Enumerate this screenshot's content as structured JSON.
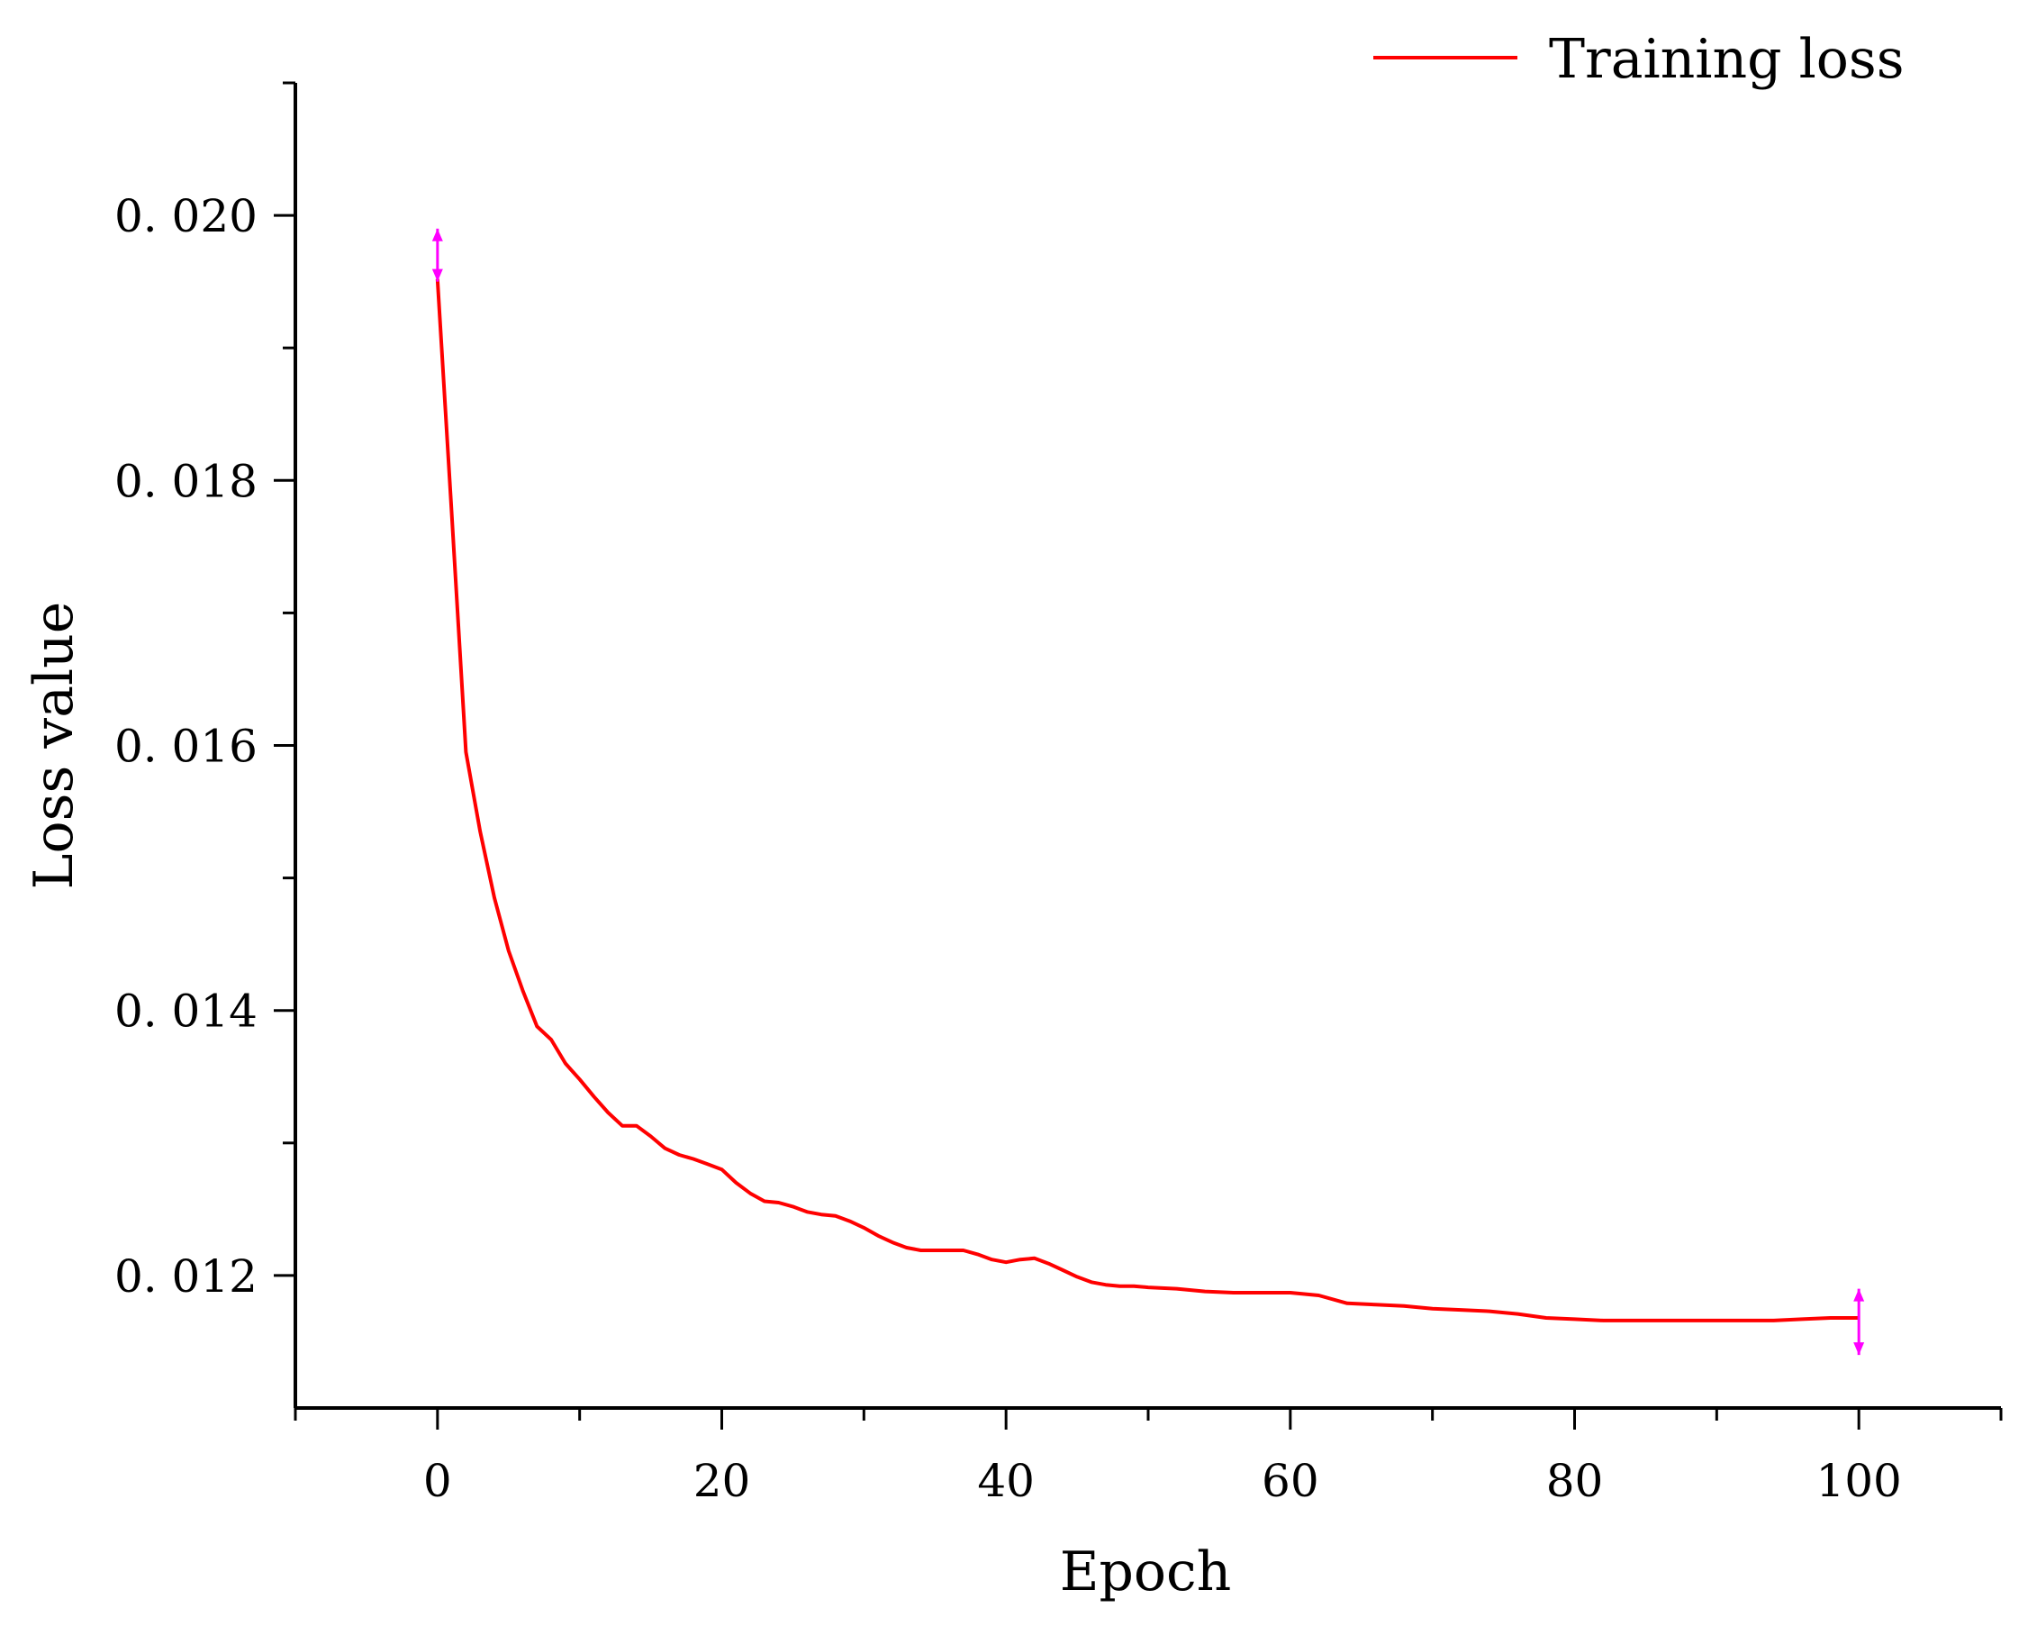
{
  "chart_data": {
    "type": "line",
    "title": "",
    "xlabel": "Epoch",
    "ylabel": "Loss value",
    "xlim": [
      -10,
      110
    ],
    "ylim": [
      0.011,
      0.021
    ],
    "x_ticks": [
      0,
      20,
      40,
      60,
      80,
      100
    ],
    "x_tick_labels": [
      "0",
      "20",
      "40",
      "60",
      "80",
      "100"
    ],
    "x_minor_ticks": [
      -10,
      10,
      30,
      50,
      70,
      90,
      110
    ],
    "y_ticks": [
      0.012,
      0.014,
      0.016,
      0.018,
      0.02
    ],
    "y_tick_labels": [
      "0. 012",
      "0. 014",
      "0. 016",
      "0. 018",
      "0. 020"
    ],
    "y_minor_ticks": [
      0.013,
      0.015,
      0.017,
      0.019,
      0.021
    ],
    "grid": false,
    "legend_position": "top-right",
    "series": [
      {
        "name": "Training loss",
        "color": "#ff0000",
        "x": [
          0,
          1,
          2,
          3,
          4,
          5,
          6,
          7,
          8,
          9,
          10,
          11,
          12,
          13,
          14,
          15,
          16,
          17,
          18,
          19,
          20,
          21,
          22,
          23,
          24,
          25,
          26,
          27,
          28,
          29,
          30,
          31,
          32,
          33,
          34,
          35,
          36,
          37,
          38,
          39,
          40,
          41,
          42,
          43,
          44,
          45,
          46,
          47,
          48,
          49,
          50,
          52,
          54,
          56,
          58,
          60,
          62,
          64,
          66,
          68,
          70,
          72,
          74,
          76,
          78,
          80,
          82,
          84,
          86,
          88,
          90,
          92,
          94,
          96,
          98,
          100
        ],
        "values": [
          0.01952,
          0.01775,
          0.01595,
          0.01535,
          0.01485,
          0.01445,
          0.01415,
          0.01388,
          0.01378,
          0.0136,
          0.01348,
          0.01335,
          0.01323,
          0.01313,
          0.01313,
          0.01305,
          0.01296,
          0.01291,
          0.01288,
          0.01284,
          0.0128,
          0.0127,
          0.01262,
          0.01256,
          0.01255,
          0.01252,
          0.01248,
          0.01246,
          0.01245,
          0.01241,
          0.01236,
          0.0123,
          0.01225,
          0.01221,
          0.01219,
          0.01219,
          0.01219,
          0.01219,
          0.01216,
          0.01212,
          0.0121,
          0.01212,
          0.01213,
          0.01209,
          0.01204,
          0.01199,
          0.01195,
          0.01193,
          0.01192,
          0.01192,
          0.01191,
          0.0119,
          0.01188,
          0.01187,
          0.01187,
          0.01187,
          0.01185,
          0.01179,
          0.01178,
          0.01177,
          0.01175,
          0.01174,
          0.01173,
          0.01171,
          0.01168,
          0.01167,
          0.01166,
          0.01166,
          0.01166,
          0.01166,
          0.01166,
          0.01166,
          0.01166,
          0.01167,
          0.01168,
          0.01168
        ],
        "error_bars": [
          {
            "x": 0,
            "low": 0.0195,
            "high": 0.0199
          },
          {
            "x": 100,
            "low": 0.0114,
            "high": 0.0119
          }
        ]
      }
    ]
  }
}
